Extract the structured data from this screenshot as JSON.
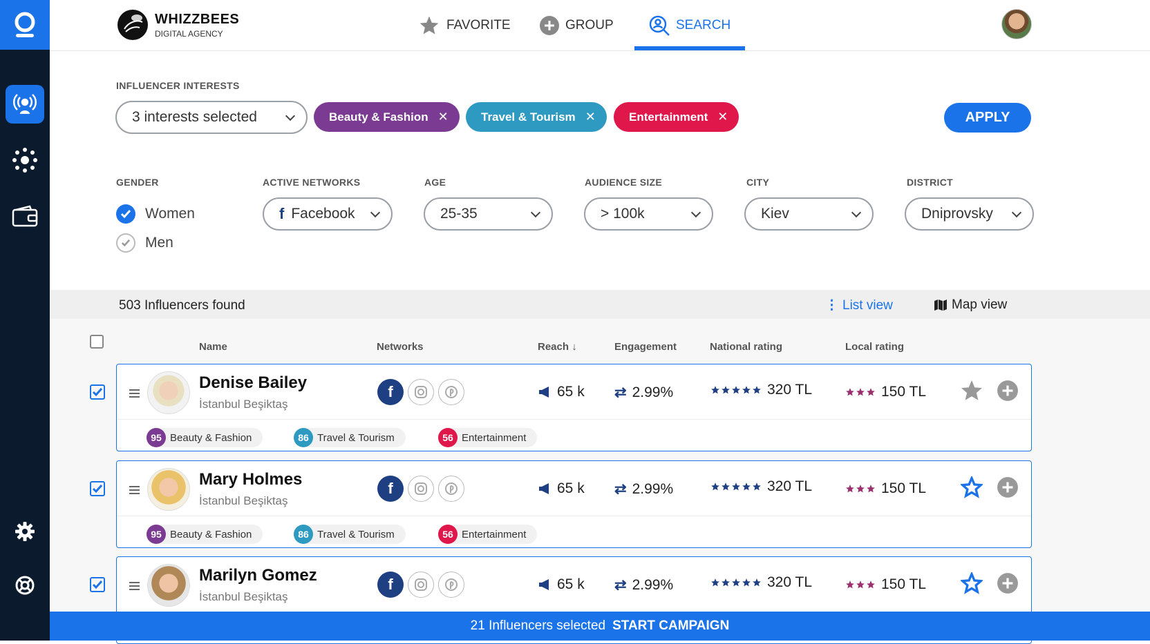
{
  "brand": {
    "name": "WHIZZBEES",
    "sub": "DIGITAL AGENCY"
  },
  "nav": {
    "favorite": "FAVORITE",
    "group": "GROUP",
    "search": "SEARCH"
  },
  "filters": {
    "interests_label": "INFLUENCER INTERESTS",
    "interests_value": "3 interests selected",
    "chips": [
      {
        "label": "Beauty & Fashion",
        "color": "#7b3b92"
      },
      {
        "label": "Travel & Tourism",
        "color": "#2e9ac2"
      },
      {
        "label": "Entertainment",
        "color": "#e0174a"
      }
    ],
    "apply": "APPLY",
    "gender_label": "GENDER",
    "gender_women": "Women",
    "gender_men": "Men",
    "networks_label": "ACTIVE NETWORKS",
    "networks_value": "Facebook",
    "age_label": "AGE",
    "age_value": "25-35",
    "audience_label": "AUDIENCE SIZE",
    "audience_value": "> 100k",
    "city_label": "CITY",
    "city_value": "Kiev",
    "district_label": "DISTRICT",
    "district_value": "Dniprovsky"
  },
  "results": {
    "found": "503 Influencers found",
    "list_view": "List view",
    "map_view": "Map view"
  },
  "columns": {
    "name": "Name",
    "networks": "Networks",
    "reach": "Reach ↓",
    "engagement": "Engagement",
    "national": "National rating",
    "local": "Local rating"
  },
  "rows": [
    {
      "name": "Denise Bailey",
      "location": "İstanbul Beşiktaş",
      "reach": "65 k",
      "engagement": "2.99%",
      "national": "320 TL",
      "local": "150 TL",
      "favorite": false,
      "tags": [
        {
          "score": "95",
          "label": "Beauty & Fashion"
        },
        {
          "score": "86",
          "label": "Travel & Tourism"
        },
        {
          "score": "56",
          "label": "Entertainment"
        }
      ]
    },
    {
      "name": "Mary Holmes",
      "location": "İstanbul Beşiktaş",
      "reach": "65 k",
      "engagement": "2.99%",
      "national": "320 TL",
      "local": "150 TL",
      "favorite": true,
      "tags": [
        {
          "score": "95",
          "label": "Beauty & Fashion"
        },
        {
          "score": "86",
          "label": "Travel & Tourism"
        },
        {
          "score": "56",
          "label": "Entertainment"
        }
      ]
    },
    {
      "name": "Marilyn Gomez",
      "location": "İstanbul Beşiktaş",
      "reach": "65 k",
      "engagement": "2.99%",
      "national": "320 TL",
      "local": "150 TL",
      "favorite": true,
      "tags": []
    }
  ],
  "footer": {
    "selected": "21 Influencers selected",
    "cta": "START CAMPAIGN"
  },
  "colors": {
    "accent": "#1a73e8",
    "sidebar": "#0c1a2e",
    "local_star": "#9c2f6e"
  }
}
